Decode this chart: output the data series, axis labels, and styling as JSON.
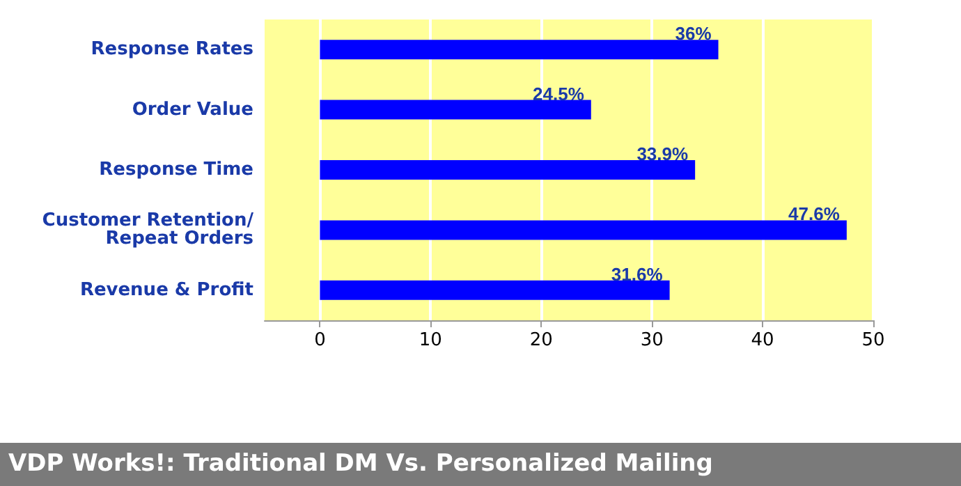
{
  "chart_data": {
    "type": "bar",
    "orientation": "horizontal",
    "title": "VDP Works!: Traditional DM Vs. Personalized Mailing",
    "categories": [
      "Response Rates",
      "Order Value",
      "Response Time",
      "Customer Retention/\nRepeat Orders",
      "Revenue & Profit"
    ],
    "values": [
      36,
      24.5,
      33.9,
      47.6,
      31.6
    ],
    "value_labels": [
      "36%",
      "24.5%",
      "33.9%",
      "47.6%",
      "31.6%"
    ],
    "color": "#0000ff",
    "xlim": [
      -5,
      50
    ],
    "xticks": [
      0,
      10,
      20,
      30,
      40,
      50
    ],
    "grid": "x"
  }
}
